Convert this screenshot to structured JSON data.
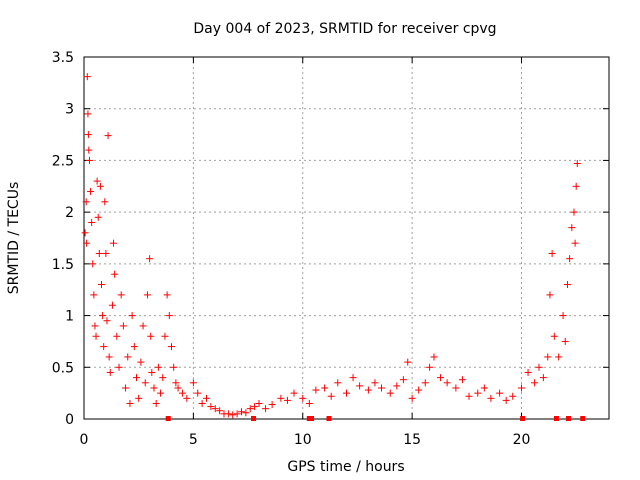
{
  "chart_data": {
    "type": "scatter",
    "title": "Day 004 of 2023, SRMTID for receiver cpvg",
    "xlabel": "GPS time / hours",
    "ylabel": "SRMTID / TECUs",
    "xlim": [
      0,
      24
    ],
    "ylim": [
      0,
      3.5
    ],
    "xticks": [
      0,
      5,
      10,
      15,
      20
    ],
    "xtick_labels": [
      "0",
      "5",
      "10",
      "15",
      "20"
    ],
    "yticks": [
      0,
      0.5,
      1,
      1.5,
      2,
      2.5,
      3,
      3.5
    ],
    "ytick_labels": [
      "0",
      "0.5",
      "1",
      "1.5",
      "2",
      "2.5",
      "3",
      "3.5"
    ],
    "grid": true,
    "marker": "+",
    "color": "#ff0000",
    "series": [
      {
        "name": "SRMTID",
        "points": [
          [
            0.05,
            1.8
          ],
          [
            0.1,
            2.1
          ],
          [
            0.12,
            1.7
          ],
          [
            0.15,
            3.31
          ],
          [
            0.18,
            2.95
          ],
          [
            0.2,
            2.75
          ],
          [
            0.22,
            2.6
          ],
          [
            0.25,
            2.5
          ],
          [
            0.3,
            2.2
          ],
          [
            0.35,
            1.9
          ],
          [
            0.4,
            1.5
          ],
          [
            0.45,
            1.2
          ],
          [
            0.5,
            0.9
          ],
          [
            0.55,
            0.8
          ],
          [
            0.6,
            2.3
          ],
          [
            0.65,
            1.95
          ],
          [
            0.7,
            1.6
          ],
          [
            0.75,
            2.25
          ],
          [
            0.8,
            1.3
          ],
          [
            0.85,
            1.0
          ],
          [
            0.9,
            0.7
          ],
          [
            0.95,
            2.1
          ],
          [
            1.0,
            1.6
          ],
          [
            1.05,
            0.95
          ],
          [
            1.1,
            2.74
          ],
          [
            1.15,
            0.6
          ],
          [
            1.2,
            0.45
          ],
          [
            1.3,
            1.1
          ],
          [
            1.35,
            1.7
          ],
          [
            1.4,
            1.4
          ],
          [
            1.5,
            0.8
          ],
          [
            1.6,
            0.5
          ],
          [
            1.7,
            1.2
          ],
          [
            1.8,
            0.9
          ],
          [
            1.9,
            0.3
          ],
          [
            2.0,
            0.6
          ],
          [
            2.1,
            0.15
          ],
          [
            2.2,
            1.0
          ],
          [
            2.3,
            0.7
          ],
          [
            2.4,
            0.4
          ],
          [
            2.5,
            0.2
          ],
          [
            2.6,
            0.55
          ],
          [
            2.7,
            0.9
          ],
          [
            2.8,
            0.35
          ],
          [
            2.9,
            1.2
          ],
          [
            3.0,
            1.55
          ],
          [
            3.05,
            0.8
          ],
          [
            3.1,
            0.45
          ],
          [
            3.2,
            0.3
          ],
          [
            3.3,
            0.15
          ],
          [
            3.4,
            0.5
          ],
          [
            3.5,
            0.25
          ],
          [
            3.6,
            0.4
          ],
          [
            3.7,
            0.8
          ],
          [
            3.8,
            1.2
          ],
          [
            3.9,
            1.0
          ],
          [
            4.0,
            0.7
          ],
          [
            4.1,
            0.5
          ],
          [
            4.2,
            0.35
          ],
          [
            4.3,
            0.3
          ],
          [
            4.5,
            0.25
          ],
          [
            4.7,
            0.2
          ],
          [
            5.0,
            0.35
          ],
          [
            5.2,
            0.25
          ],
          [
            5.4,
            0.15
          ],
          [
            5.6,
            0.2
          ],
          [
            5.8,
            0.12
          ],
          [
            6.0,
            0.1
          ],
          [
            6.2,
            0.08
          ],
          [
            6.4,
            0.05
          ],
          [
            6.6,
            0.05
          ],
          [
            6.8,
            0.04
          ],
          [
            7.0,
            0.05
          ],
          [
            7.2,
            0.07
          ],
          [
            7.4,
            0.06
          ],
          [
            7.6,
            0.1
          ],
          [
            7.8,
            0.12
          ],
          [
            8.0,
            0.15
          ],
          [
            8.3,
            0.1
          ],
          [
            8.6,
            0.14
          ],
          [
            9.0,
            0.2
          ],
          [
            9.3,
            0.18
          ],
          [
            9.6,
            0.25
          ],
          [
            10.0,
            0.2
          ],
          [
            10.3,
            0.15
          ],
          [
            10.6,
            0.28
          ],
          [
            11.0,
            0.3
          ],
          [
            11.3,
            0.22
          ],
          [
            11.6,
            0.35
          ],
          [
            12.0,
            0.25
          ],
          [
            12.3,
            0.4
          ],
          [
            12.6,
            0.32
          ],
          [
            13.0,
            0.28
          ],
          [
            13.3,
            0.35
          ],
          [
            13.6,
            0.3
          ],
          [
            14.0,
            0.25
          ],
          [
            14.3,
            0.32
          ],
          [
            14.6,
            0.38
          ],
          [
            14.8,
            0.55
          ],
          [
            15.0,
            0.2
          ],
          [
            15.3,
            0.28
          ],
          [
            15.6,
            0.35
          ],
          [
            15.8,
            0.5
          ],
          [
            16.0,
            0.6
          ],
          [
            16.3,
            0.4
          ],
          [
            16.6,
            0.35
          ],
          [
            17.0,
            0.3
          ],
          [
            17.3,
            0.38
          ],
          [
            17.6,
            0.22
          ],
          [
            18.0,
            0.25
          ],
          [
            18.3,
            0.3
          ],
          [
            18.6,
            0.2
          ],
          [
            19.0,
            0.25
          ],
          [
            19.3,
            0.18
          ],
          [
            19.6,
            0.22
          ],
          [
            20.0,
            0.3
          ],
          [
            20.3,
            0.45
          ],
          [
            20.6,
            0.35
          ],
          [
            20.8,
            0.5
          ],
          [
            21.0,
            0.4
          ],
          [
            21.2,
            0.6
          ],
          [
            21.3,
            1.2
          ],
          [
            21.4,
            1.6
          ],
          [
            21.5,
            0.8
          ],
          [
            21.7,
            0.6
          ],
          [
            21.9,
            1.0
          ],
          [
            22.0,
            0.75
          ],
          [
            22.1,
            1.3
          ],
          [
            22.2,
            1.55
          ],
          [
            22.3,
            1.85
          ],
          [
            22.4,
            2.0
          ],
          [
            22.45,
            1.7
          ],
          [
            22.5,
            2.25
          ],
          [
            22.55,
            2.47
          ]
        ]
      }
    ],
    "bottom_markers_x": [
      3.85,
      7.75,
      10.3,
      10.4,
      11.2,
      20.05,
      21.6,
      22.15,
      22.8
    ]
  }
}
